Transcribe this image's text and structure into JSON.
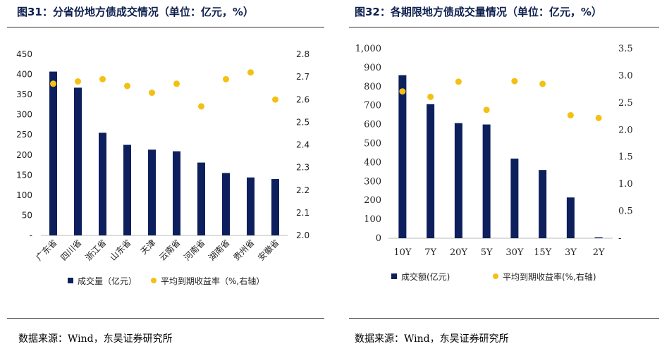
{
  "figures": [
    {
      "title": "图31：分省份地方债成交情况（单位：亿元，%）",
      "source": "数据来源：Wind，东吴证券研究所"
    },
    {
      "title": "图32：各期限地方债成交量情况（单位：亿元，%）",
      "source": "数据来源：Wind，东吴证券研究所"
    }
  ],
  "chart_data": [
    {
      "type": "bar",
      "categories": [
        "广东省",
        "四川省",
        "浙江省",
        "山东省",
        "天津",
        "云南省",
        "河南省",
        "湖南省",
        "贵州省",
        "安徽省"
      ],
      "series": [
        {
          "name": "成交量（亿元）",
          "type": "bar",
          "axis": "left",
          "color": "#0d1f5c",
          "values": [
            407,
            367,
            255,
            225,
            213,
            209,
            181,
            155,
            144,
            140
          ]
        },
        {
          "name": "平均到期收益率（%,右轴）",
          "type": "scatter",
          "axis": "right",
          "color": "#f3c013",
          "values": [
            2.67,
            2.68,
            2.69,
            2.66,
            2.63,
            2.67,
            2.57,
            2.69,
            2.72,
            2.6
          ]
        }
      ],
      "y_left": {
        "min": 0,
        "max": 450,
        "ticks": [
          "-",
          "50",
          "100",
          "150",
          "200",
          "250",
          "300",
          "350",
          "400",
          "450"
        ]
      },
      "y_right": {
        "min": 2.0,
        "max": 2.8,
        "ticks": [
          "2.0",
          "2.1",
          "2.2",
          "2.3",
          "2.4",
          "2.5",
          "2.6",
          "2.7",
          "2.8"
        ]
      },
      "grid": false,
      "legend": "bottom"
    },
    {
      "type": "bar",
      "categories": [
        "10Y",
        "7Y",
        "20Y",
        "5Y",
        "30Y",
        "15Y",
        "3Y",
        "2Y"
      ],
      "series": [
        {
          "name": "成交额(亿元)",
          "type": "bar",
          "axis": "left",
          "color": "#0d1f5c",
          "values": [
            860,
            707,
            607,
            600,
            420,
            360,
            215,
            5
          ]
        },
        {
          "name": "平均到期收益率(%,右轴)",
          "type": "scatter",
          "axis": "right",
          "color": "#f3c013",
          "values": [
            2.71,
            2.61,
            2.89,
            2.37,
            2.9,
            2.85,
            2.27,
            2.22
          ]
        }
      ],
      "y_left": {
        "min": 0,
        "max": 1000,
        "ticks": [
          "0",
          "100",
          "200",
          "300",
          "400",
          "500",
          "600",
          "700",
          "800",
          "900",
          "1,000"
        ]
      },
      "y_right": {
        "min": 0,
        "max": 3.5,
        "ticks": [
          "-",
          "0.5",
          "1.0",
          "1.5",
          "2.0",
          "2.5",
          "3.0",
          "3.5"
        ]
      },
      "grid": false,
      "legend": "bottom"
    }
  ]
}
